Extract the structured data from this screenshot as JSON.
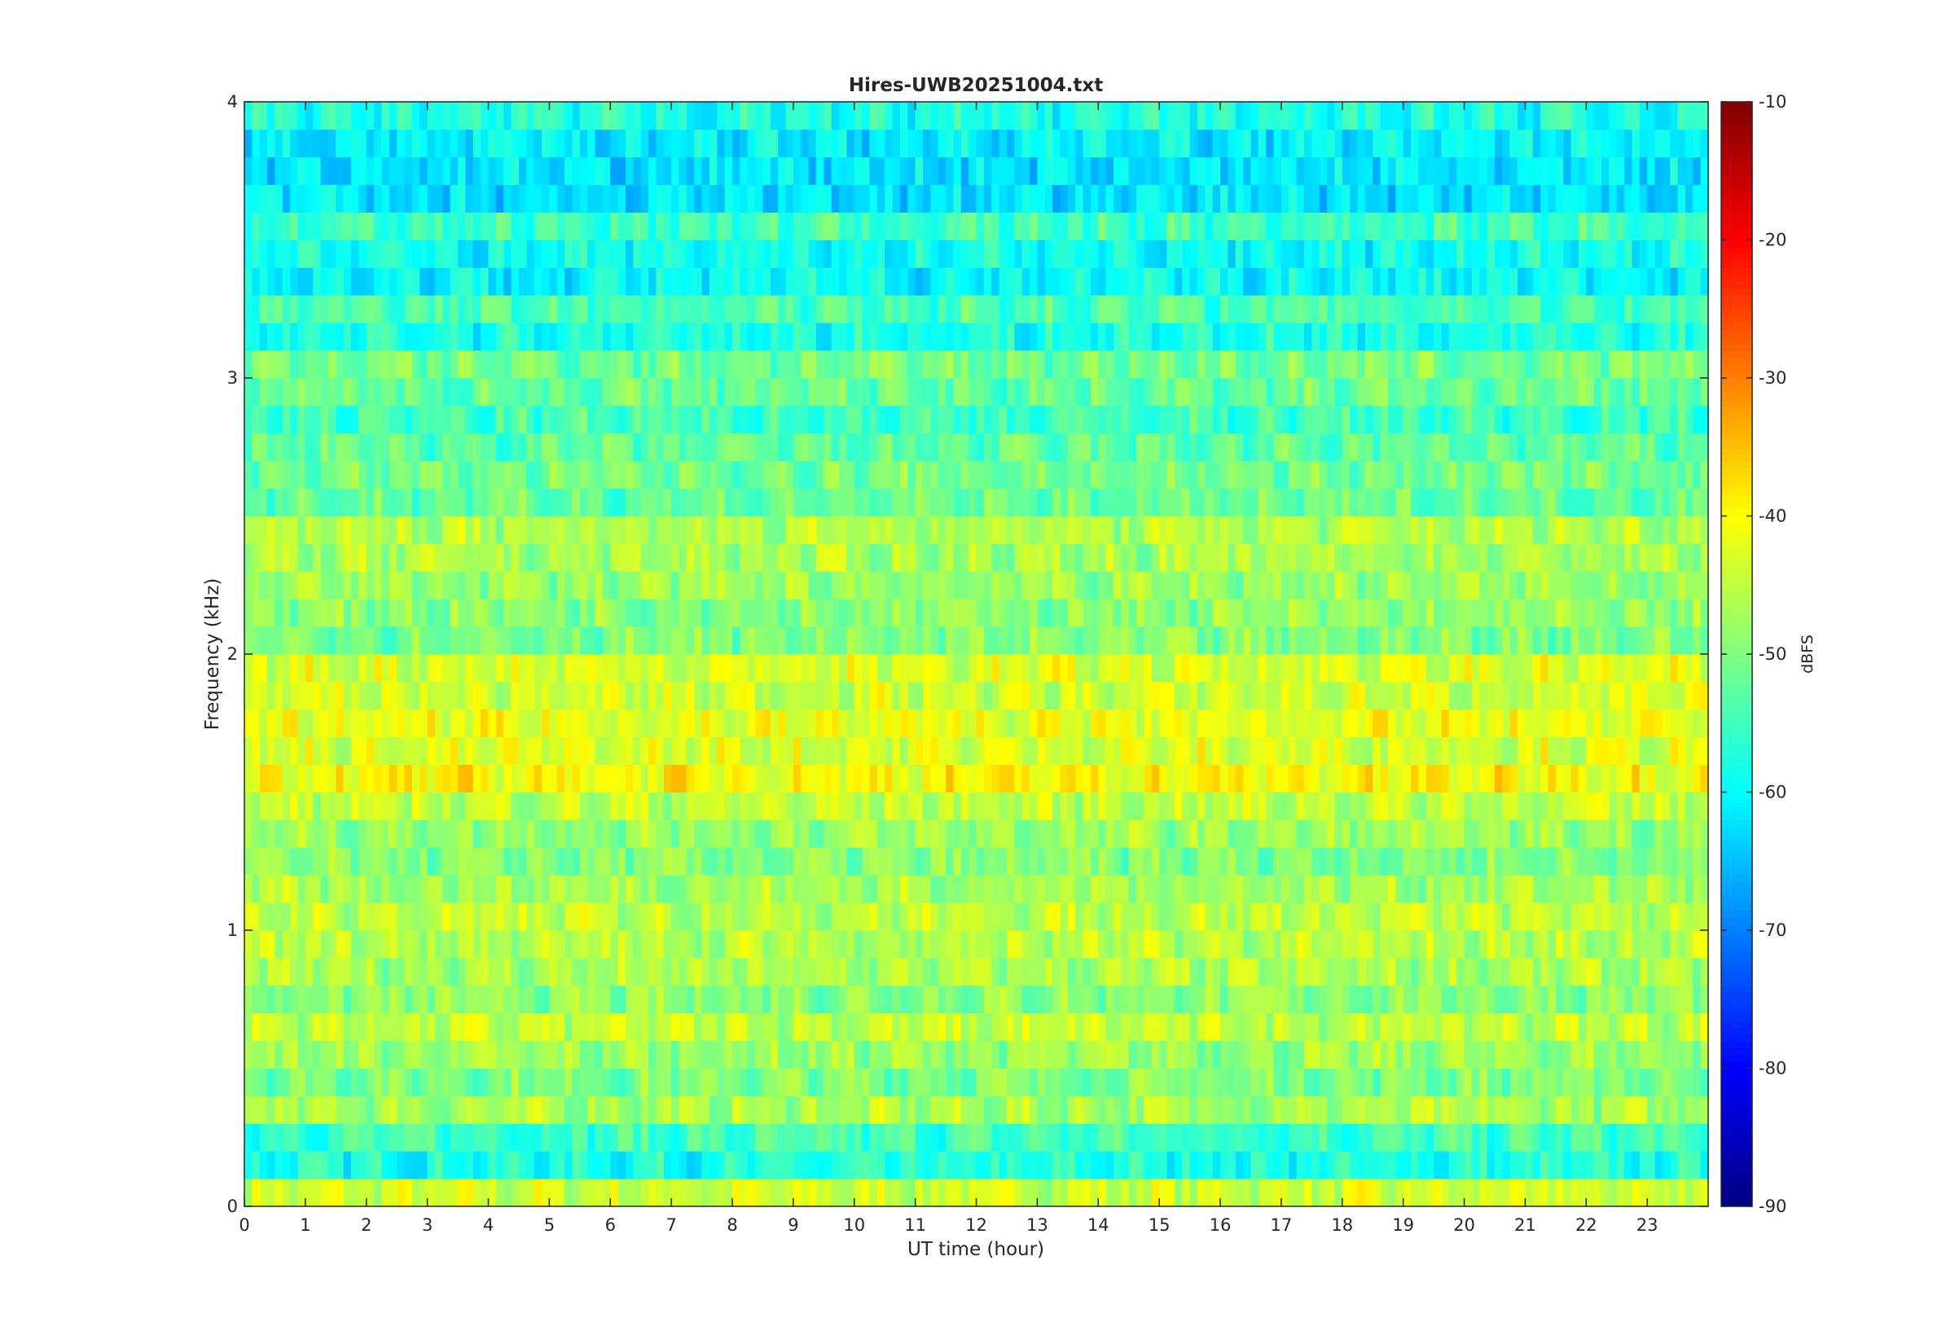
{
  "chart_data": {
    "type": "heatmap",
    "title": "Hires-UWB20251004.txt",
    "xlabel": "UT time (hour)",
    "ylabel": "Frequency (kHz)",
    "xlim": [
      0,
      24
    ],
    "ylim": [
      0,
      4
    ],
    "x_ticks": [
      "0",
      "1",
      "2",
      "3",
      "4",
      "5",
      "6",
      "7",
      "8",
      "9",
      "10",
      "11",
      "12",
      "13",
      "14",
      "15",
      "16",
      "17",
      "18",
      "19",
      "20",
      "21",
      "22",
      "23"
    ],
    "y_ticks": [
      "0",
      "1",
      "2",
      "3",
      "4"
    ],
    "colorbar": {
      "label": "dBFS",
      "range": [
        -90,
        -10
      ],
      "ticks": [
        "-10",
        "-20",
        "-30",
        "-40",
        "-50",
        "-60",
        "-70",
        "-80",
        "-90"
      ],
      "colormap": "jet"
    },
    "bands": [
      {
        "freq": 0.05,
        "level": -44
      },
      {
        "freq": 0.15,
        "level": -58
      },
      {
        "freq": 0.25,
        "level": -55
      },
      {
        "freq": 0.35,
        "level": -47
      },
      {
        "freq": 0.45,
        "level": -50
      },
      {
        "freq": 0.55,
        "level": -48
      },
      {
        "freq": 0.65,
        "level": -45
      },
      {
        "freq": 0.75,
        "level": -49
      },
      {
        "freq": 0.85,
        "level": -47
      },
      {
        "freq": 0.95,
        "level": -46
      },
      {
        "freq": 1.05,
        "level": -45
      },
      {
        "freq": 1.15,
        "level": -47
      },
      {
        "freq": 1.25,
        "level": -50
      },
      {
        "freq": 1.35,
        "level": -48
      },
      {
        "freq": 1.45,
        "level": -45
      },
      {
        "freq": 1.55,
        "level": -40
      },
      {
        "freq": 1.65,
        "level": -43
      },
      {
        "freq": 1.75,
        "level": -42
      },
      {
        "freq": 1.85,
        "level": -44
      },
      {
        "freq": 1.95,
        "level": -43
      },
      {
        "freq": 2.05,
        "level": -50
      },
      {
        "freq": 2.15,
        "level": -49
      },
      {
        "freq": 2.25,
        "level": -48
      },
      {
        "freq": 2.35,
        "level": -47
      },
      {
        "freq": 2.45,
        "level": -46
      },
      {
        "freq": 2.55,
        "level": -52
      },
      {
        "freq": 2.65,
        "level": -51
      },
      {
        "freq": 2.75,
        "level": -53
      },
      {
        "freq": 2.85,
        "level": -55
      },
      {
        "freq": 2.95,
        "level": -52
      },
      {
        "freq": 3.05,
        "level": -51
      },
      {
        "freq": 3.15,
        "level": -58
      },
      {
        "freq": 3.25,
        "level": -54
      },
      {
        "freq": 3.35,
        "level": -60
      },
      {
        "freq": 3.45,
        "level": -59
      },
      {
        "freq": 3.55,
        "level": -55
      },
      {
        "freq": 3.65,
        "level": -62
      },
      {
        "freq": 3.75,
        "level": -62
      },
      {
        "freq": 3.85,
        "level": -61
      },
      {
        "freq": 3.95,
        "level": -58
      }
    ]
  }
}
